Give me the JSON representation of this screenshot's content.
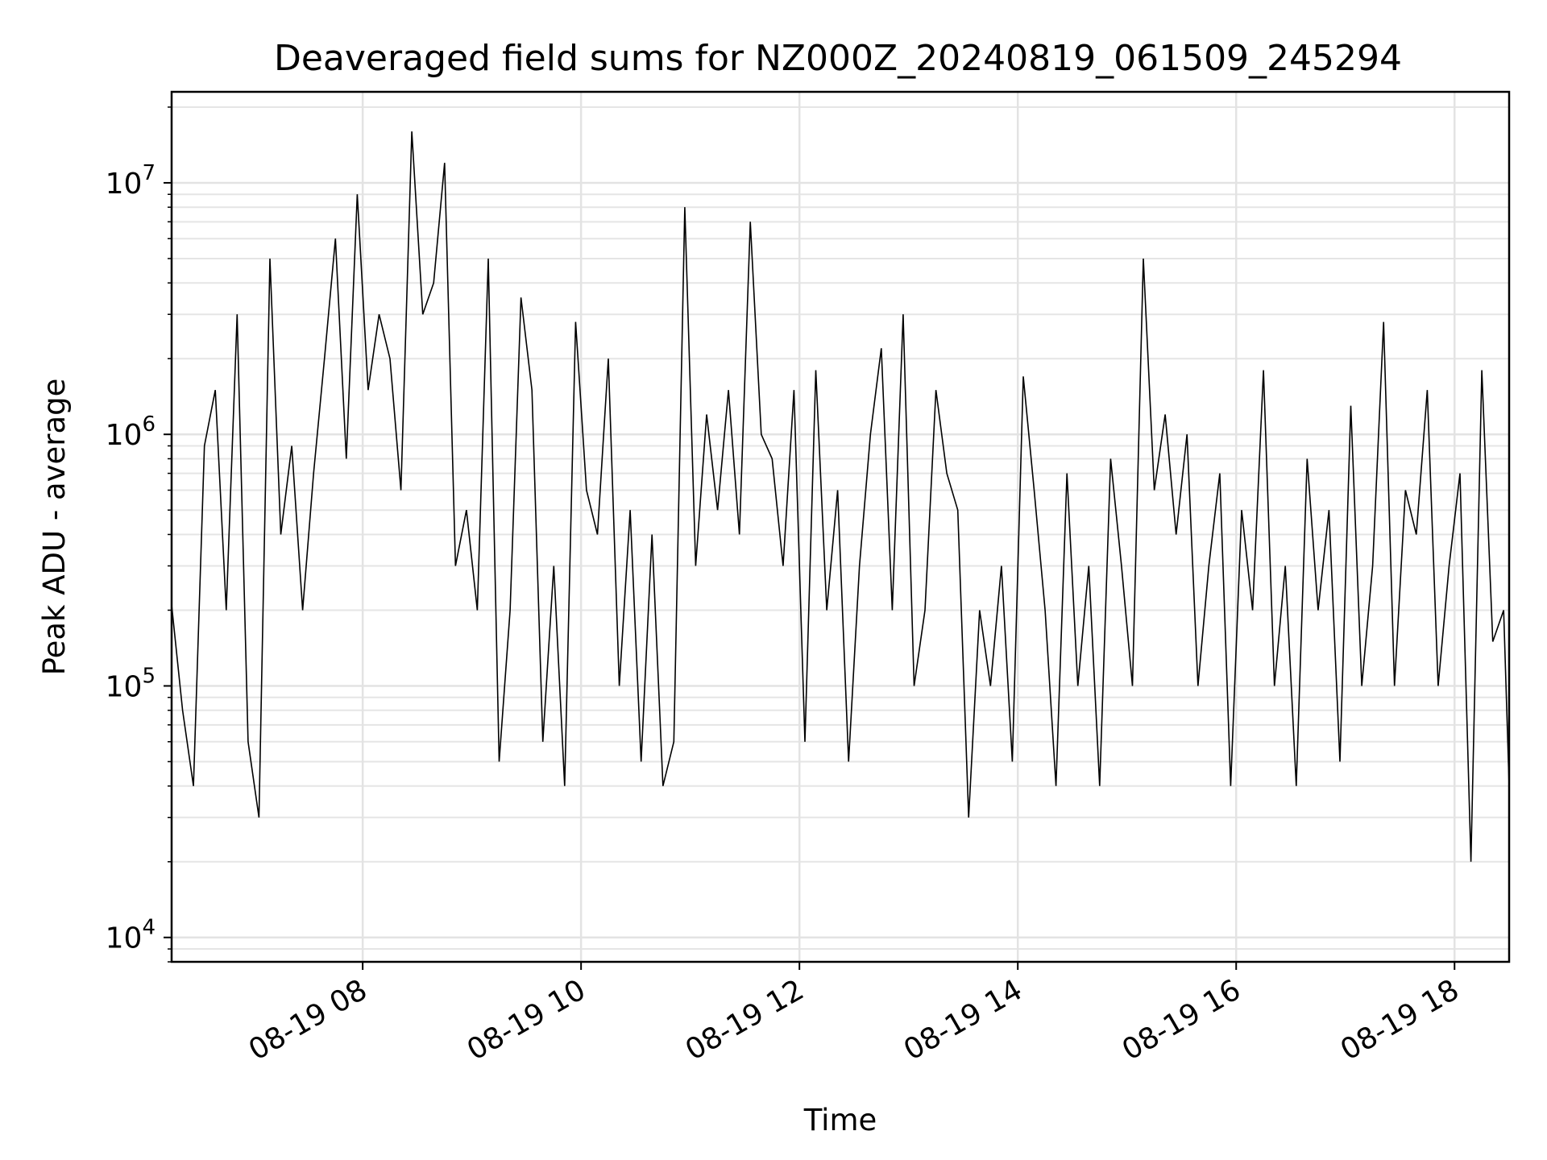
{
  "chart_data": {
    "type": "line",
    "title": "Deaveraged field sums for NZ000Z_20240819_061509_245294",
    "xlabel": "Time",
    "ylabel": "Peak ADU - average",
    "y_scale": "log",
    "ylim": [
      8000,
      23000000
    ],
    "xlim": [
      "2024-08-19 06:15",
      "2024-08-19 18:30"
    ],
    "x_ticks": [
      {
        "time": "2024-08-19 08:00",
        "label": "08-19 08"
      },
      {
        "time": "2024-08-19 10:00",
        "label": "08-19 10"
      },
      {
        "time": "2024-08-19 12:00",
        "label": "08-19 12"
      },
      {
        "time": "2024-08-19 14:00",
        "label": "08-19 14"
      },
      {
        "time": "2024-08-19 16:00",
        "label": "08-19 16"
      },
      {
        "time": "2024-08-19 18:00",
        "label": "08-19 18"
      }
    ],
    "y_ticks": [
      {
        "value": 10000,
        "base": "10",
        "exp": "4"
      },
      {
        "value": 100000,
        "base": "10",
        "exp": "5"
      },
      {
        "value": 1000000,
        "base": "10",
        "exp": "6"
      },
      {
        "value": 10000000,
        "base": "10",
        "exp": "7"
      }
    ],
    "grid": true,
    "line_color": "#000000",
    "series": [
      {
        "x": [
          "2024-08-19 06:15",
          "2024-08-19 06:21",
          "2024-08-19 06:27",
          "2024-08-19 06:33",
          "2024-08-19 06:39",
          "2024-08-19 06:45",
          "2024-08-19 06:51",
          "2024-08-19 06:57",
          "2024-08-19 07:03",
          "2024-08-19 07:09",
          "2024-08-19 07:15",
          "2024-08-19 07:21",
          "2024-08-19 07:27",
          "2024-08-19 07:33",
          "2024-08-19 07:39",
          "2024-08-19 07:45",
          "2024-08-19 07:51",
          "2024-08-19 07:57",
          "2024-08-19 08:03",
          "2024-08-19 08:09",
          "2024-08-19 08:15",
          "2024-08-19 08:21",
          "2024-08-19 08:27",
          "2024-08-19 08:33",
          "2024-08-19 08:39",
          "2024-08-19 08:45",
          "2024-08-19 08:51",
          "2024-08-19 08:57",
          "2024-08-19 09:03",
          "2024-08-19 09:09",
          "2024-08-19 09:15",
          "2024-08-19 09:21",
          "2024-08-19 09:27",
          "2024-08-19 09:33",
          "2024-08-19 09:39",
          "2024-08-19 09:45",
          "2024-08-19 09:51",
          "2024-08-19 09:57",
          "2024-08-19 10:03",
          "2024-08-19 10:09",
          "2024-08-19 10:15",
          "2024-08-19 10:21",
          "2024-08-19 10:27",
          "2024-08-19 10:33",
          "2024-08-19 10:39",
          "2024-08-19 10:45",
          "2024-08-19 10:51",
          "2024-08-19 10:57",
          "2024-08-19 11:03",
          "2024-08-19 11:09",
          "2024-08-19 11:15",
          "2024-08-19 11:21",
          "2024-08-19 11:27",
          "2024-08-19 11:33",
          "2024-08-19 11:39",
          "2024-08-19 11:45",
          "2024-08-19 11:51",
          "2024-08-19 11:57",
          "2024-08-19 12:03",
          "2024-08-19 12:09",
          "2024-08-19 12:15",
          "2024-08-19 12:21",
          "2024-08-19 12:27",
          "2024-08-19 12:33",
          "2024-08-19 12:39",
          "2024-08-19 12:45",
          "2024-08-19 12:51",
          "2024-08-19 12:57",
          "2024-08-19 13:03",
          "2024-08-19 13:09",
          "2024-08-19 13:15",
          "2024-08-19 13:21",
          "2024-08-19 13:27",
          "2024-08-19 13:33",
          "2024-08-19 13:39",
          "2024-08-19 13:45",
          "2024-08-19 13:51",
          "2024-08-19 13:57",
          "2024-08-19 14:03",
          "2024-08-19 14:09",
          "2024-08-19 14:15",
          "2024-08-19 14:21",
          "2024-08-19 14:27",
          "2024-08-19 14:33",
          "2024-08-19 14:39",
          "2024-08-19 14:45",
          "2024-08-19 14:51",
          "2024-08-19 14:57",
          "2024-08-19 15:03",
          "2024-08-19 15:09",
          "2024-08-19 15:15",
          "2024-08-19 15:21",
          "2024-08-19 15:27",
          "2024-08-19 15:33",
          "2024-08-19 15:39",
          "2024-08-19 15:45",
          "2024-08-19 15:51",
          "2024-08-19 15:57",
          "2024-08-19 16:03",
          "2024-08-19 16:09",
          "2024-08-19 16:15",
          "2024-08-19 16:21",
          "2024-08-19 16:27",
          "2024-08-19 16:33",
          "2024-08-19 16:39",
          "2024-08-19 16:45",
          "2024-08-19 16:51",
          "2024-08-19 16:57",
          "2024-08-19 17:03",
          "2024-08-19 17:09",
          "2024-08-19 17:15",
          "2024-08-19 17:21",
          "2024-08-19 17:27",
          "2024-08-19 17:33",
          "2024-08-19 17:39",
          "2024-08-19 17:45",
          "2024-08-19 17:51",
          "2024-08-19 17:57",
          "2024-08-19 18:03",
          "2024-08-19 18:09",
          "2024-08-19 18:15",
          "2024-08-19 18:21",
          "2024-08-19 18:27",
          "2024-08-19 18:30"
        ],
        "y": [
          210000,
          80000,
          40000,
          900000,
          1500000,
          200000,
          3000000,
          60000,
          30000,
          5000000,
          400000,
          900000,
          200000,
          700000,
          2000000,
          6000000,
          800000,
          9000000,
          1500000,
          3000000,
          2000000,
          600000,
          16000000,
          3000000,
          4000000,
          12000000,
          300000,
          500000,
          200000,
          5000000,
          50000,
          200000,
          3500000,
          1500000,
          60000,
          300000,
          40000,
          2800000,
          600000,
          400000,
          2000000,
          100000,
          500000,
          50000,
          400000,
          40000,
          60000,
          8000000,
          300000,
          1200000,
          500000,
          1500000,
          400000,
          7000000,
          1000000,
          800000,
          300000,
          1500000,
          60000,
          1800000,
          200000,
          600000,
          50000,
          300000,
          1000000,
          2200000,
          200000,
          3000000,
          100000,
          200000,
          1500000,
          700000,
          500000,
          30000,
          200000,
          100000,
          300000,
          50000,
          1700000,
          600000,
          200000,
          40000,
          700000,
          100000,
          300000,
          40000,
          800000,
          300000,
          100000,
          5000000,
          600000,
          1200000,
          400000,
          1000000,
          100000,
          300000,
          700000,
          40000,
          500000,
          200000,
          1800000,
          100000,
          300000,
          40000,
          800000,
          200000,
          500000,
          50000,
          1300000,
          100000,
          300000,
          2800000,
          100000,
          600000,
          400000,
          1500000,
          100000,
          300000,
          700000,
          20000,
          1800000,
          150000,
          200000,
          40000
        ]
      }
    ]
  }
}
